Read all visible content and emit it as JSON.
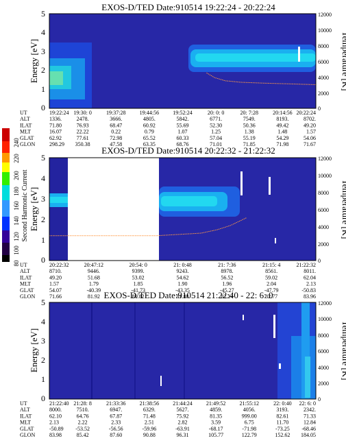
{
  "colorbar": {
    "label": "Second Harmonic Current",
    "ticks": [
      "240",
      "220",
      "200",
      "180",
      "160",
      "140",
      "120",
      "100",
      "80"
    ],
    "colors": [
      "#cc0000",
      "#ff0000",
      "#ff9900",
      "#ffff00",
      "#33ee00",
      "#00dddd",
      "#3399ff",
      "#0033ff",
      "#330099",
      "#220044",
      "#000000"
    ]
  },
  "chart_data": [
    {
      "type": "heatmap",
      "title": "EXOS-D/TED   Date:910514   19:22:24 - 20:22:24",
      "ylabel": "Energy [eV]",
      "y2label": "Temperature [K]",
      "ylim": [
        0,
        5
      ],
      "y2lim": [
        0,
        12000
      ],
      "yticks": [
        "0",
        "1",
        "2",
        "3",
        "4",
        "5"
      ],
      "y2ticks": [
        "0",
        "2000",
        "4000",
        "6000",
        "8000",
        "10000",
        "12000"
      ],
      "row_labels": [
        "UT",
        "ALT",
        "ILAT",
        "MLT",
        "GLAT",
        "GLON"
      ],
      "columns": [
        [
          "19:22:24",
          "1336.",
          "71.80",
          "16.07",
          "62.92",
          "298.29"
        ],
        [
          "19:30: 0",
          "2478.",
          "76.93",
          "22.22",
          "77.61",
          "350.38"
        ],
        [
          "19:37:28",
          "3666.",
          "68.47",
          "0.22",
          "72.98",
          "47.58"
        ],
        [
          "19:44:56",
          "4805.",
          "60.92",
          "0.79",
          "65.52",
          "63.35"
        ],
        [
          "19:52:24",
          "5842.",
          "55.69",
          "1.07",
          "60.33",
          "68.76"
        ],
        [
          "20: 0: 0",
          "6771.",
          "52.30",
          "1.25",
          "57.04",
          "71.01"
        ],
        [
          "20: 7:28",
          "7549.",
          "50.36",
          "1.38",
          "55.19",
          "71.85"
        ],
        [
          "20:14:56",
          "8193.",
          "49.42",
          "1.48",
          "54.29",
          "71.98"
        ],
        [
          "20:22:24",
          "8702.",
          "49.20",
          "1.57",
          "54.06",
          "71.67"
        ]
      ],
      "temperature_trace": {
        "x": [
          0.59,
          0.62,
          0.66,
          0.72,
          0.8,
          0.9,
          1.0
        ],
        "y": [
          4500,
          3900,
          3500,
          3300,
          3200,
          3100,
          3000
        ]
      }
    },
    {
      "type": "heatmap",
      "title": "EXOS-D/TED   Date:910514   20:22:32 - 21:22:32",
      "ylabel": "Energy [eV]",
      "y2label": "Temperature [K]",
      "ylim": [
        0,
        5
      ],
      "y2lim": [
        0,
        12000
      ],
      "yticks": [
        "0",
        "1",
        "2",
        "3",
        "4",
        "5"
      ],
      "y2ticks": [
        "0",
        "2000",
        "4000",
        "6000",
        "8000",
        "10000",
        "12000"
      ],
      "row_labels": [
        "UT",
        "ALT",
        "ILAT",
        "MLT",
        "GLAT",
        "GLON"
      ],
      "columns": [
        [
          "20:22:32",
          "8710.",
          "49.20",
          "1.57",
          "54.07",
          "71.66"
        ],
        [
          "20:47:12",
          "9446.",
          "51.68",
          "1.79",
          "-40.39",
          "81.92"
        ],
        [
          "20:54: 0",
          "9399.",
          "53.02",
          "1.85",
          "-41.73",
          "81.82"
        ],
        [
          "21: 0:48",
          "9243.",
          "54.62",
          "1.90",
          "-43.35",
          "81.88"
        ],
        [
          "21: 7:36",
          "8978.",
          "56.52",
          "1.96",
          "-45.27",
          "82.14"
        ],
        [
          "21:15: 4",
          "8561.",
          "59.02",
          "2.04",
          "-47.79",
          "82.77"
        ],
        [
          "21:22:32",
          "8011.",
          "62.04",
          "2.13",
          "-50.83",
          "83.96"
        ]
      ],
      "temperature_trace": {
        "x": [
          0.0,
          0.2,
          0.4,
          0.57,
          0.63,
          0.68,
          0.74
        ],
        "y": [
          2900,
          2900,
          2900,
          3200,
          3600,
          4100,
          5000
        ]
      }
    },
    {
      "type": "heatmap",
      "title": "EXOS-D/TED   Date:910514   21:22:40 - 22: 6: 0",
      "ylabel": "Energy [eV]",
      "y2label": "Temperature [K]",
      "ylim": [
        0,
        5
      ],
      "y2lim": [
        0,
        12000
      ],
      "yticks": [
        "0",
        "1",
        "2",
        "3",
        "4",
        "5"
      ],
      "y2ticks": [
        "0",
        "2000",
        "4000",
        "6000",
        "8000",
        "10000",
        "12000"
      ],
      "row_labels": [
        "UT",
        "ALT",
        "ILAT",
        "MLT",
        "GLAT",
        "GLON"
      ],
      "columns": [
        [
          "21:22:40",
          "8000.",
          "62.10",
          "2.13",
          "-50.89",
          "83.98"
        ],
        [
          "21:28: 8",
          "7510.",
          "64.76",
          "2.22",
          "-53.52",
          "85.42"
        ],
        [
          "21:33:36",
          "6947.",
          "67.87",
          "2.33",
          "-56.56",
          "87.60"
        ],
        [
          "21:38:56",
          "6329.",
          "71.48",
          "2.51",
          "-59.96",
          "90.88"
        ],
        [
          "21:44:24",
          "5627.",
          "75.92",
          "2.82",
          "-63.91",
          "96.31"
        ],
        [
          "21:49:52",
          "4859.",
          "81.35",
          "3.59",
          "-68.17",
          "105.77"
        ],
        [
          "21:55:12",
          "4056.",
          "999.00",
          "6.75",
          "-71.98",
          "122.79"
        ],
        [
          "22: 0:40",
          "3193.",
          "82.61",
          "11.70",
          "-73.25",
          "152.62"
        ],
        [
          "22: 6: 0",
          "2342.",
          "71.33",
          "12.84",
          "-68.46",
          "184.05"
        ]
      ]
    }
  ]
}
